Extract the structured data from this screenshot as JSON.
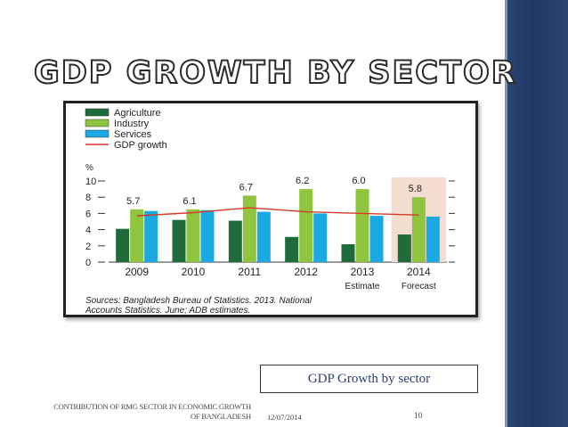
{
  "slide": {
    "title": "GDP GROWTH BY SECTOR",
    "caption": "GDP Growth by sector",
    "footer_text": "CONTRIBUTION OF RMG SECTOR IN ECONOMIC GROWTH OF BANGLADESH",
    "date": "12/07/2014",
    "page_number": "10"
  },
  "colors": {
    "agriculture": "#1f6b3c",
    "industry": "#8fc43f",
    "services": "#1aa9e2",
    "gdp_line": "#d63a2a",
    "forecast_shade": "#f3ddd0",
    "side_panel": "#1f3763"
  },
  "chart_data": {
    "type": "bar",
    "unit_label": "%",
    "categories": [
      "2009",
      "2010",
      "2011",
      "2012",
      "2013",
      "2014"
    ],
    "series": [
      {
        "name": "Agriculture",
        "values": [
          4.1,
          5.2,
          5.1,
          3.1,
          2.2,
          3.4
        ]
      },
      {
        "name": "Industry",
        "values": [
          6.5,
          6.5,
          8.2,
          9.0,
          9.0,
          8.0
        ]
      },
      {
        "name": "Services",
        "values": [
          6.3,
          6.4,
          6.2,
          6.0,
          5.7,
          5.6
        ]
      }
    ],
    "line_series": {
      "name": "GDP growth",
      "values": [
        5.7,
        6.1,
        6.7,
        6.2,
        6.0,
        5.8
      ]
    },
    "data_labels": [
      "5.7",
      "6.1",
      "6.7",
      "6.2",
      "6.0",
      "5.8"
    ],
    "y_ticks": [
      "0",
      "2",
      "4",
      "6",
      "8",
      "10"
    ],
    "ylim": [
      0,
      10
    ],
    "forecast_category": "2014",
    "sublabels": [
      "Estimate",
      "Forecast"
    ],
    "source_note_line1": "Sources: Bangladesh Bureau of Statistics. 2013. National",
    "source_note_line2": "Accounts Statistics. June; ADB estimates."
  }
}
